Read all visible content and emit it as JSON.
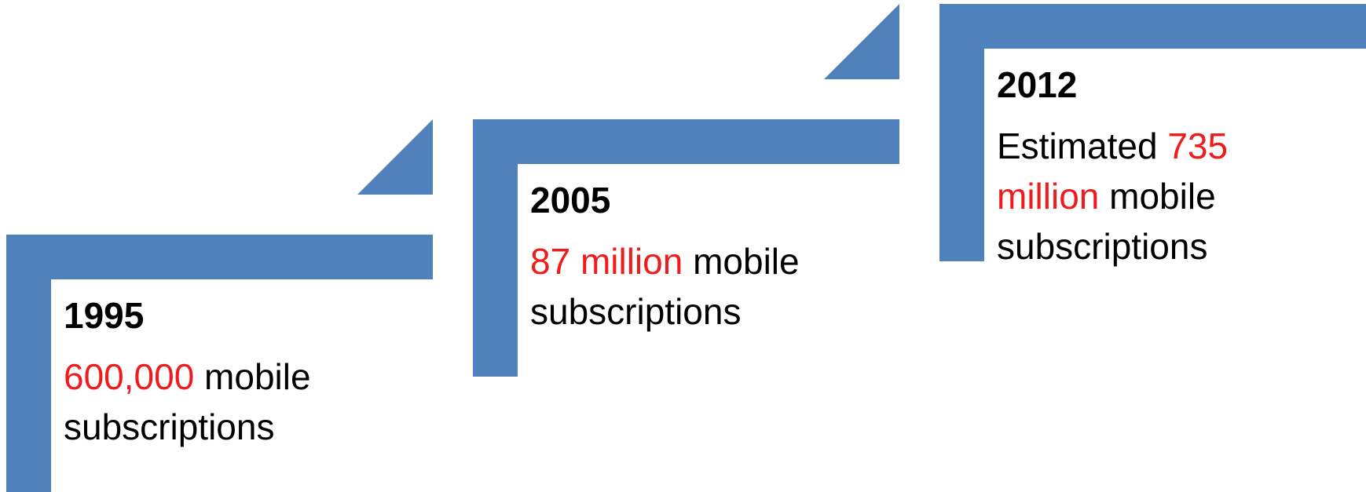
{
  "colors": {
    "bracket": "#4f81bd",
    "highlight": "#ee1c1c",
    "text": "#000000"
  },
  "steps": [
    {
      "year": "1995",
      "pre": "",
      "highlight": "600,000",
      "post": " mobile subscriptions"
    },
    {
      "year": "2005",
      "pre": "",
      "highlight": "87 million",
      "post": " mobile subscriptions"
    },
    {
      "year": "2012",
      "pre": "Estimated ",
      "highlight": "735 million",
      "post": " mobile subscriptions"
    }
  ]
}
